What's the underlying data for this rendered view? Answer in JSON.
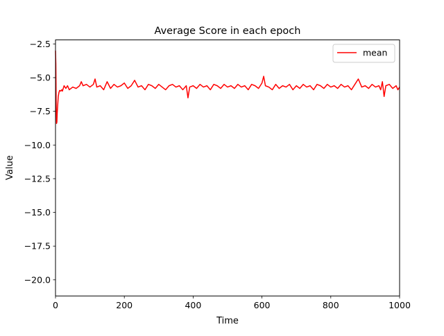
{
  "chart_data": {
    "type": "line",
    "title": "Average Score in each epoch",
    "xlabel": "Time",
    "ylabel": "Value",
    "xlim": [
      0,
      1000
    ],
    "ylim": [
      -21.2,
      -2.2
    ],
    "xticks": [
      0,
      200,
      400,
      600,
      800,
      1000
    ],
    "xtick_labels": [
      "0",
      "200",
      "400",
      "600",
      "800",
      "1000"
    ],
    "yticks": [
      -2.5,
      -5.0,
      -7.5,
      -10.0,
      -12.5,
      -15.0,
      -17.5,
      -20.0
    ],
    "ytick_labels": [
      "−2.5",
      "−5.0",
      "−7.5",
      "−10.0",
      "−12.5",
      "−15.0",
      "−17.5",
      "−20.0"
    ],
    "grid": false,
    "legend_position": "top-right",
    "series": [
      {
        "name": "mean",
        "color": "#ff0000",
        "x": [
          0,
          1,
          2,
          3,
          4,
          5,
          6,
          8,
          10,
          12,
          15,
          18,
          20,
          25,
          30,
          35,
          40,
          50,
          60,
          70,
          75,
          80,
          90,
          100,
          110,
          115,
          120,
          130,
          140,
          150,
          160,
          170,
          180,
          190,
          200,
          210,
          220,
          230,
          240,
          250,
          260,
          270,
          280,
          290,
          300,
          310,
          320,
          330,
          340,
          350,
          360,
          370,
          380,
          385,
          390,
          400,
          410,
          420,
          430,
          440,
          450,
          460,
          470,
          480,
          490,
          500,
          510,
          520,
          530,
          540,
          550,
          560,
          570,
          580,
          590,
          600,
          605,
          610,
          620,
          630,
          640,
          650,
          660,
          670,
          680,
          690,
          700,
          710,
          720,
          730,
          740,
          750,
          760,
          770,
          780,
          790,
          800,
          810,
          820,
          830,
          840,
          850,
          860,
          870,
          880,
          890,
          900,
          910,
          920,
          930,
          940,
          945,
          950,
          955,
          960,
          970,
          980,
          990,
          995,
          1000
        ],
        "y": [
          -3.0,
          -4.0,
          -7.0,
          -8.4,
          -8.3,
          -7.6,
          -7.2,
          -6.4,
          -6.1,
          -5.95,
          -6.0,
          -5.9,
          -6.0,
          -5.6,
          -5.8,
          -5.6,
          -5.9,
          -5.7,
          -5.8,
          -5.6,
          -5.3,
          -5.6,
          -5.5,
          -5.7,
          -5.5,
          -5.1,
          -5.7,
          -5.6,
          -5.9,
          -5.3,
          -5.8,
          -5.5,
          -5.7,
          -5.6,
          -5.4,
          -5.8,
          -5.6,
          -5.2,
          -5.7,
          -5.6,
          -5.9,
          -5.5,
          -5.6,
          -5.8,
          -5.5,
          -5.7,
          -5.9,
          -5.6,
          -5.5,
          -5.7,
          -5.6,
          -5.9,
          -5.6,
          -6.5,
          -5.7,
          -5.6,
          -5.8,
          -5.5,
          -5.7,
          -5.6,
          -5.9,
          -5.5,
          -5.6,
          -5.8,
          -5.5,
          -5.7,
          -5.6,
          -5.8,
          -5.5,
          -5.7,
          -5.6,
          -5.9,
          -5.5,
          -5.6,
          -5.8,
          -5.4,
          -4.9,
          -5.6,
          -5.7,
          -5.9,
          -5.5,
          -5.8,
          -5.6,
          -5.7,
          -5.5,
          -5.9,
          -5.6,
          -5.8,
          -5.5,
          -5.7,
          -5.6,
          -5.9,
          -5.5,
          -5.6,
          -5.8,
          -5.5,
          -5.7,
          -5.6,
          -5.8,
          -5.5,
          -5.7,
          -5.6,
          -5.9,
          -5.5,
          -5.1,
          -5.7,
          -5.6,
          -5.8,
          -5.5,
          -5.7,
          -5.6,
          -5.9,
          -5.3,
          -6.4,
          -5.6,
          -5.5,
          -5.8,
          -5.6,
          -5.9,
          -5.7
        ]
      }
    ]
  }
}
